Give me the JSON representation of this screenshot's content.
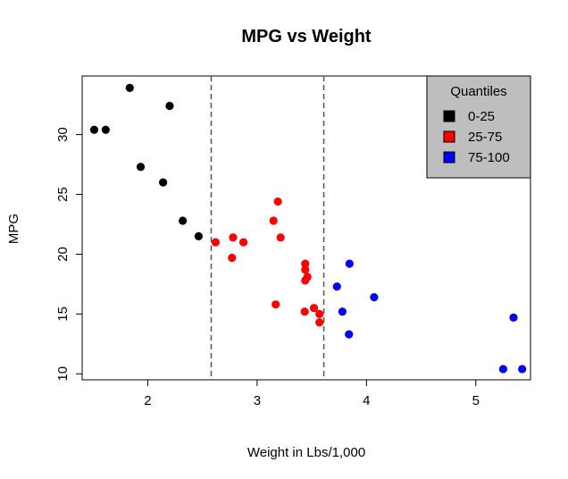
{
  "chart_data": {
    "type": "scatter",
    "title": "MPG vs Weight",
    "xlabel": "Weight in Lbs/1,000",
    "ylabel": "MPG",
    "xlim": [
      1.4,
      5.5
    ],
    "ylim": [
      9.5,
      34.9
    ],
    "xticks": [
      2,
      3,
      4,
      5
    ],
    "yticks": [
      10,
      15,
      20,
      25,
      30
    ],
    "grid": false,
    "vlines": [
      2.58,
      3.61
    ],
    "legend": {
      "title": "Quantiles",
      "position": "top-right"
    },
    "series": [
      {
        "name": "0-25",
        "color": "#000000",
        "points": [
          [
            1.51,
            30.4
          ],
          [
            1.615,
            30.4
          ],
          [
            1.835,
            33.9
          ],
          [
            1.935,
            27.3
          ],
          [
            2.14,
            26.0
          ],
          [
            2.2,
            32.4
          ],
          [
            2.32,
            22.8
          ],
          [
            2.465,
            21.5
          ]
        ]
      },
      {
        "name": "25-75",
        "color": "#ff0000",
        "points": [
          [
            2.62,
            21.0
          ],
          [
            2.77,
            19.7
          ],
          [
            2.78,
            21.4
          ],
          [
            2.875,
            21.0
          ],
          [
            3.15,
            22.8
          ],
          [
            3.17,
            15.8
          ],
          [
            3.19,
            24.4
          ],
          [
            3.215,
            21.4
          ],
          [
            3.435,
            15.2
          ],
          [
            3.44,
            19.2
          ],
          [
            3.44,
            18.7
          ],
          [
            3.44,
            17.8
          ],
          [
            3.46,
            18.1
          ],
          [
            3.52,
            15.5
          ],
          [
            3.57,
            15.0
          ],
          [
            3.57,
            14.3
          ]
        ]
      },
      {
        "name": "75-100",
        "color": "#0000ff",
        "points": [
          [
            3.73,
            17.3
          ],
          [
            3.78,
            15.2
          ],
          [
            3.84,
            13.3
          ],
          [
            3.845,
            19.2
          ],
          [
            4.07,
            16.4
          ],
          [
            5.25,
            10.4
          ],
          [
            5.345,
            14.7
          ],
          [
            5.424,
            10.4
          ]
        ]
      }
    ]
  }
}
